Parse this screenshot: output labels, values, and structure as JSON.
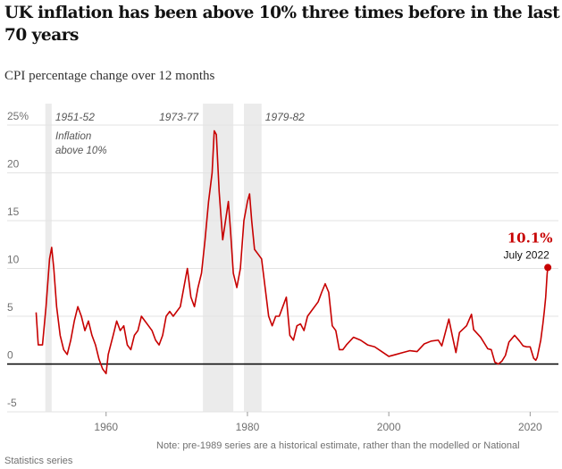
{
  "chart_data": {
    "type": "line",
    "title": "UK inflation has been above 10% three times before in the last 70 years",
    "subtitle": "CPI percentage change over 12 months",
    "note": "Note: pre-1989 series are a historical estimate, rather than the modelled or National Statistics series",
    "color": "#c70000",
    "x": [
      1950.1,
      1950.4,
      1951,
      1951.5,
      1952,
      1952.3,
      1952.6,
      1953,
      1953.5,
      1954,
      1954.5,
      1955,
      1955.5,
      1956,
      1956.5,
      1957,
      1957.5,
      1958,
      1958.5,
      1959,
      1959.5,
      1960,
      1960.3,
      1961,
      1961.5,
      1962,
      1962.5,
      1963,
      1963.5,
      1964,
      1964.5,
      1965,
      1965.5,
      1966,
      1966.5,
      1967,
      1967.5,
      1968,
      1968.5,
      1969,
      1969.5,
      1970,
      1970.5,
      1971,
      1971.5,
      1972,
      1972.5,
      1973,
      1973.5,
      1974,
      1974.5,
      1975,
      1975.3,
      1975.6,
      1976,
      1976.5,
      1977,
      1977.3,
      1977.6,
      1978,
      1978.5,
      1979,
      1979.5,
      1980,
      1980.3,
      1980.6,
      1981,
      1981.5,
      1982,
      1982.5,
      1983,
      1983.5,
      1984,
      1984.5,
      1985,
      1985.5,
      1986,
      1986.5,
      1987,
      1987.5,
      1988,
      1988.5,
      1989,
      1990,
      1990.5,
      1991,
      1991.5,
      1992,
      1992.5,
      1993,
      1993.5,
      1994,
      1995,
      1996,
      1997,
      1998,
      1999,
      2000,
      2001,
      2002,
      2003,
      2004,
      2005,
      2006,
      2007,
      2007.5,
      2008.5,
      2009,
      2009.5,
      2010,
      2011,
      2011.7,
      2012,
      2013,
      2014,
      2014.5,
      2015,
      2015.5,
      2016,
      2016.5,
      2017,
      2017.8,
      2018.5,
      2019,
      2019.5,
      2020,
      2020.5,
      2020.8,
      2021,
      2021.5,
      2021.8,
      2022,
      2022.2,
      2022.4,
      2022.5
    ],
    "values": [
      5.4,
      2,
      2,
      6,
      11,
      12.2,
      10,
      6,
      3,
      1.5,
      1,
      2.5,
      4.5,
      6,
      5,
      3.5,
      4.5,
      3,
      2,
      0.5,
      -0.5,
      -1,
      1,
      3,
      4.5,
      3.5,
      4,
      2,
      1.5,
      3,
      3.5,
      5,
      4.5,
      4,
      3.5,
      2.5,
      2,
      3,
      5,
      5.5,
      5,
      5.5,
      6,
      8,
      10,
      7,
      6,
      8,
      9.5,
      13,
      17,
      20,
      24.4,
      24,
      18,
      13,
      15.5,
      17,
      14,
      9.5,
      8,
      10,
      15,
      17,
      17.8,
      15,
      12,
      11.5,
      11,
      8,
      5,
      4,
      5,
      5,
      6,
      7,
      3,
      2.5,
      4,
      4.2,
      3.5,
      5,
      5.5,
      6.5,
      7.5,
      8.4,
      7.5,
      4,
      3.5,
      1.5,
      1.5,
      2,
      2.8,
      2.5,
      2,
      1.8,
      1.3,
      0.8,
      1,
      1.2,
      1.4,
      1.3,
      2.1,
      2.4,
      2.5,
      1.9,
      4.7,
      2.9,
      1.2,
      3.3,
      4,
      5.2,
      3.6,
      2.8,
      1.6,
      1.5,
      0.2,
      0,
      0.3,
      0.9,
      2.3,
      3,
      2.4,
      1.9,
      1.8,
      1.8,
      0.6,
      0.4,
      0.7,
      2.5,
      4.2,
      5.5,
      7,
      9.4,
      10.1
    ],
    "xlim": [
      1946,
      2024
    ],
    "xticks": [
      1960,
      1980,
      2000,
      2020
    ],
    "ylim": [
      -5,
      25
    ],
    "yticks": [
      -5,
      0,
      5,
      10,
      15,
      20,
      {
        "value": 25,
        "label": "25%"
      }
    ],
    "grid": true,
    "periods": [
      {
        "label": "1951-52",
        "start": 1951.4,
        "end": 1952.3,
        "label_side": "right"
      },
      {
        "label": "1973-77",
        "start": 1973.7,
        "end": 1978,
        "label_side": "left"
      },
      {
        "label": "1979-82",
        "start": 1979.5,
        "end": 1982,
        "label_side": "right"
      }
    ],
    "annotation": "Inflation above 10%",
    "highlight": {
      "x": 2022.5,
      "value": 10.1,
      "value_label": "10.1%",
      "label": "July 2022"
    }
  }
}
